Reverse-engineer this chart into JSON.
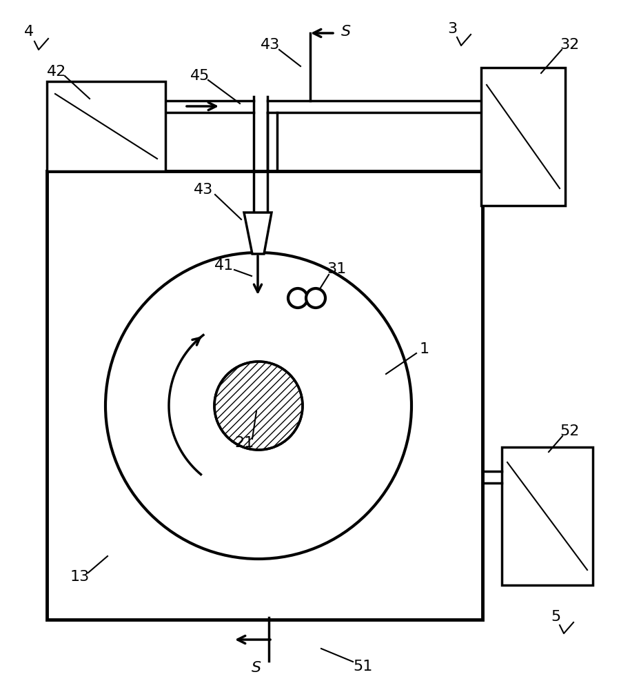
{
  "bg_color": "#ffffff",
  "lc": "#000000",
  "lw": 2.5,
  "tlw": 1.5,
  "fs": 16,
  "figsize": [
    9.14,
    10.0
  ],
  "dpi": 100
}
